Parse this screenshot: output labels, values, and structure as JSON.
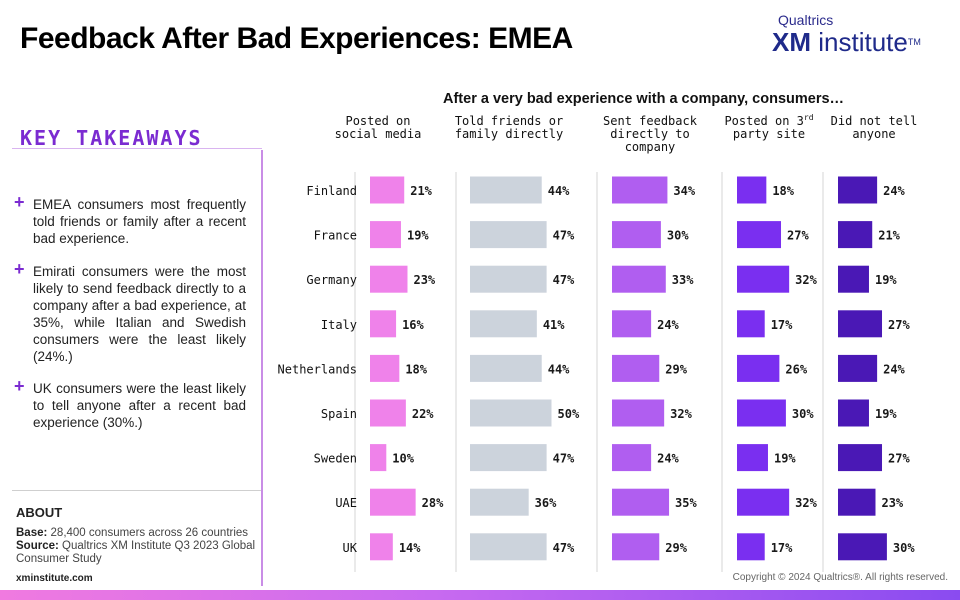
{
  "header": {
    "title": "Feedback After Bad Experiences: EMEA",
    "logo_top": "Qualtrics",
    "logo_xm": "XM",
    "logo_word": "institute",
    "logo_tm": "TM"
  },
  "takeaways": {
    "heading": "KEY TAKEAWAYS",
    "items": [
      "EMEA consumers most frequently told friends or family after a recent bad experience.",
      "Emirati consumers were the most likely to send feedback directly to a company after a bad experience, at 35%, while Italian and Swedish consumers were the least likely (24%.)",
      "UK consumers were the least likely to tell anyone after a recent bad experience (30%.)"
    ]
  },
  "about": {
    "heading": "ABOUT",
    "base_label": "Base:",
    "base_text": "28,400 consumers across 26 countries",
    "source_label": "Source:",
    "source_text": "Qualtrics XM Institute Q3 2023 Global Consumer Study",
    "site": "xminstitute.com"
  },
  "copyright": "Copyright © 2024 Qualtrics®. All rights reserved.",
  "chart_data": {
    "type": "bar",
    "title": "After a very bad experience with a company, consumers…",
    "categories": [
      "Finland",
      "France",
      "Germany",
      "Italy",
      "Netherlands",
      "Spain",
      "Sweden",
      "UAE",
      "UK"
    ],
    "series": [
      {
        "name": "Posted on social media",
        "color": "#ef82ea",
        "values": [
          21,
          19,
          23,
          16,
          18,
          22,
          10,
          28,
          14
        ]
      },
      {
        "name": "Told friends or family directly",
        "color": "#ccd3dc",
        "values": [
          44,
          47,
          47,
          41,
          44,
          50,
          47,
          36,
          47
        ]
      },
      {
        "name": "Sent feedback directly to company",
        "color": "#b05ef0",
        "values": [
          34,
          30,
          33,
          24,
          29,
          32,
          24,
          35,
          29
        ]
      },
      {
        "name": "Posted on 3rd party site",
        "color": "#7a2ff0",
        "values": [
          18,
          27,
          32,
          17,
          26,
          30,
          19,
          32,
          17
        ]
      },
      {
        "name": "Did not tell anyone",
        "color": "#4a18b5",
        "values": [
          24,
          21,
          19,
          27,
          24,
          19,
          27,
          23,
          30
        ]
      }
    ],
    "value_suffix": "%",
    "grid": false
  }
}
